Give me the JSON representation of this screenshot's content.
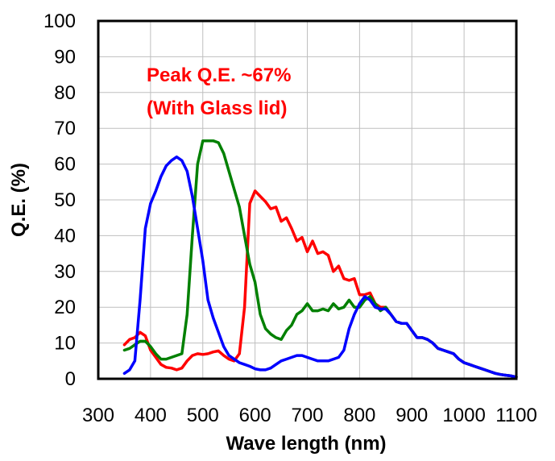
{
  "chart_data": {
    "type": "line",
    "xlabel": "Wave length (nm)",
    "ylabel": "Q.E.  (%)",
    "xlim": [
      300,
      1100
    ],
    "ylim": [
      0,
      100
    ],
    "x_ticks": [
      "300",
      "400",
      "500",
      "600",
      "700",
      "800",
      "900",
      "1000",
      "1100"
    ],
    "y_ticks": [
      "0",
      "10",
      "20",
      "30",
      "40",
      "50",
      "60",
      "70",
      "80",
      "90",
      "100"
    ],
    "grid": true,
    "annotations": [
      "Peak Q.E. ~67%",
      "(With Glass lid)"
    ],
    "series": [
      {
        "name": "red",
        "color": "#ff0000",
        "x": [
          350,
          360,
          370,
          380,
          390,
          400,
          410,
          420,
          430,
          440,
          450,
          460,
          470,
          480,
          490,
          500,
          510,
          520,
          530,
          540,
          550,
          560,
          570,
          580,
          590,
          600,
          610,
          620,
          630,
          640,
          650,
          660,
          670,
          680,
          690,
          700,
          710,
          720,
          730,
          740,
          750,
          760,
          770,
          780,
          790,
          800,
          810,
          820,
          830,
          840,
          850,
          860,
          870,
          880,
          890,
          900,
          910,
          920,
          930,
          940,
          950,
          960,
          970,
          980,
          990,
          1000,
          1010,
          1020,
          1030,
          1040,
          1050,
          1060,
          1070,
          1080,
          1090,
          1100
        ],
        "values": [
          9.5,
          11,
          11.5,
          13,
          12,
          8,
          6,
          4,
          3.2,
          3,
          2.5,
          3,
          5,
          6.5,
          7,
          6.8,
          7,
          7.5,
          7.8,
          6.5,
          5.5,
          5,
          7,
          20,
          49,
          52.5,
          51,
          49.5,
          47.5,
          48,
          44,
          45,
          42,
          38.5,
          39.5,
          35.5,
          38.5,
          35,
          35.5,
          34.5,
          30,
          31.5,
          28,
          27.5,
          28,
          23.5,
          23.5,
          24,
          21,
          20,
          20,
          18,
          16,
          15.5,
          15.5,
          13.5,
          11.5,
          11.5,
          11,
          10,
          8.5,
          8,
          7.5,
          7,
          5.5,
          4.5,
          4,
          3.5,
          3,
          2.5,
          2,
          1.5,
          1.2,
          1,
          0.8,
          0.5
        ]
      },
      {
        "name": "green",
        "color": "#008000",
        "x": [
          350,
          360,
          370,
          380,
          390,
          400,
          410,
          420,
          430,
          440,
          450,
          460,
          470,
          480,
          490,
          500,
          510,
          520,
          530,
          540,
          550,
          560,
          570,
          580,
          590,
          600,
          610,
          620,
          630,
          640,
          650,
          660,
          670,
          680,
          690,
          700,
          710,
          720,
          730,
          740,
          750,
          760,
          770,
          780,
          790,
          800,
          810,
          820,
          830,
          840,
          850,
          860,
          870,
          880,
          890,
          900,
          910,
          920,
          930,
          940,
          950,
          960,
          970,
          980,
          990,
          1000,
          1010,
          1020,
          1030,
          1040,
          1050,
          1060,
          1070,
          1080,
          1090,
          1100
        ],
        "values": [
          8,
          8.5,
          9.5,
          10.5,
          10.5,
          9,
          7,
          5.5,
          5.5,
          6,
          6.5,
          7,
          18,
          40,
          60,
          66.5,
          66.5,
          66.5,
          66,
          63,
          58,
          53,
          48,
          40,
          32,
          27,
          18,
          14,
          12.5,
          11.5,
          11,
          13.5,
          15,
          18,
          19,
          21,
          19,
          19,
          19.5,
          19,
          21,
          19.5,
          20,
          22,
          20,
          20,
          22,
          23,
          21,
          19,
          20,
          18,
          16,
          15.5,
          15.5,
          13.5,
          11.5,
          11.5,
          11,
          10,
          8.5,
          8,
          7.5,
          7,
          5.5,
          4.5,
          4,
          3.5,
          3,
          2.5,
          2,
          1.5,
          1.2,
          1,
          0.8,
          0.5
        ]
      },
      {
        "name": "blue",
        "color": "#0000ff",
        "x": [
          350,
          360,
          370,
          380,
          390,
          400,
          410,
          420,
          430,
          440,
          450,
          460,
          470,
          480,
          490,
          500,
          510,
          520,
          530,
          540,
          550,
          560,
          570,
          580,
          590,
          600,
          610,
          620,
          630,
          640,
          650,
          660,
          670,
          680,
          690,
          700,
          710,
          720,
          730,
          740,
          750,
          760,
          770,
          780,
          790,
          800,
          810,
          820,
          830,
          840,
          850,
          860,
          870,
          880,
          890,
          900,
          910,
          920,
          930,
          940,
          950,
          960,
          970,
          980,
          990,
          1000,
          1010,
          1020,
          1030,
          1040,
          1050,
          1060,
          1070,
          1080,
          1090,
          1100
        ],
        "values": [
          1.5,
          2.5,
          5,
          22,
          42,
          49,
          52.5,
          56.5,
          59.5,
          61,
          62,
          61,
          58,
          51,
          42,
          33,
          22,
          17,
          13,
          9,
          6.5,
          5.5,
          4.5,
          4,
          3.5,
          2.8,
          2.5,
          2.5,
          3,
          4,
          5,
          5.5,
          6,
          6.5,
          6.5,
          6,
          5.5,
          5,
          5,
          5,
          5.5,
          6,
          8,
          14,
          18,
          21,
          23,
          22,
          20,
          19.5,
          19.5,
          18,
          16,
          15.5,
          15.5,
          13.5,
          11.5,
          11.5,
          11,
          10,
          8.5,
          8,
          7.5,
          7,
          5.5,
          4.5,
          4,
          3.5,
          3,
          2.5,
          2,
          1.5,
          1.2,
          1,
          0.8,
          0.5
        ]
      }
    ]
  }
}
